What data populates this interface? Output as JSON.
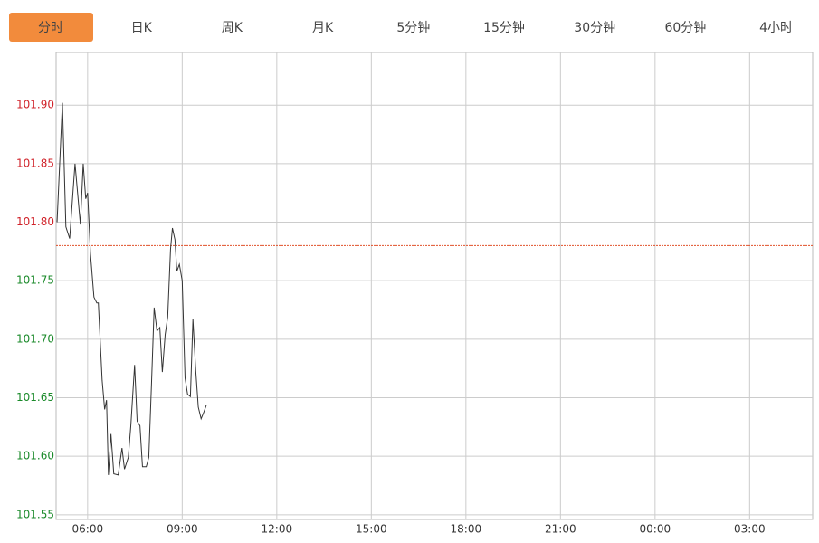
{
  "tabs": [
    "分时",
    "日K",
    "周K",
    "月K",
    "5分钟",
    "15分钟",
    "30分钟",
    "60分钟",
    "4小时"
  ],
  "active_tab": 0,
  "chart_data": {
    "type": "line",
    "xlim": [
      5,
      29
    ],
    "xticks": [
      {
        "value": 6,
        "label": "06:00"
      },
      {
        "value": 9,
        "label": "09:00"
      },
      {
        "value": 12,
        "label": "12:00"
      },
      {
        "value": 15,
        "label": "15:00"
      },
      {
        "value": 18,
        "label": "18:00"
      },
      {
        "value": 21,
        "label": "21:00"
      },
      {
        "value": 24,
        "label": "00:00"
      },
      {
        "value": 27,
        "label": "03:00"
      }
    ],
    "ylim": [
      101.546,
      101.945
    ],
    "yticks": [
      {
        "value": 101.55,
        "label": "101.55"
      },
      {
        "value": 101.6,
        "label": "101.60"
      },
      {
        "value": 101.65,
        "label": "101.65"
      },
      {
        "value": 101.7,
        "label": "101.70"
      },
      {
        "value": 101.75,
        "label": "101.75"
      },
      {
        "value": 101.8,
        "label": "101.80"
      },
      {
        "value": 101.85,
        "label": "101.85"
      },
      {
        "value": 101.9,
        "label": "101.90"
      }
    ],
    "grid": true,
    "reference": 101.78,
    "reference_color": "#e0502a",
    "up_color": "#d0232a",
    "down_color": "#1a8a2a",
    "series": [
      {
        "color": "#333333",
        "x": [
          5.03,
          5.2,
          5.31,
          5.43,
          5.6,
          5.77,
          5.86,
          5.94,
          6.0,
          6.09,
          6.2,
          6.29,
          6.34,
          6.46,
          6.54,
          6.6,
          6.66,
          6.74,
          6.83,
          6.97,
          7.09,
          7.17,
          7.29,
          7.37,
          7.49,
          7.57,
          7.66,
          7.74,
          7.86,
          7.94,
          8.03,
          8.11,
          8.2,
          8.29,
          8.37,
          8.46,
          8.54,
          8.63,
          8.69,
          8.77,
          8.83,
          8.91,
          9.0,
          9.09,
          9.17,
          9.26,
          9.34,
          9.43,
          9.51,
          9.6,
          9.69,
          9.77
        ],
        "values": [
          101.8,
          101.902,
          101.796,
          101.786,
          101.85,
          101.798,
          101.85,
          101.82,
          101.825,
          101.773,
          101.736,
          101.731,
          101.731,
          101.665,
          101.64,
          101.648,
          101.584,
          101.619,
          101.585,
          101.584,
          101.607,
          101.589,
          101.599,
          101.626,
          101.678,
          101.63,
          101.626,
          101.591,
          101.591,
          101.599,
          101.665,
          101.727,
          101.707,
          101.71,
          101.672,
          101.704,
          101.719,
          101.777,
          101.795,
          101.785,
          101.758,
          101.764,
          101.75,
          101.667,
          101.653,
          101.651,
          101.717,
          101.673,
          101.642,
          101.632,
          101.638,
          101.644
        ]
      }
    ]
  }
}
